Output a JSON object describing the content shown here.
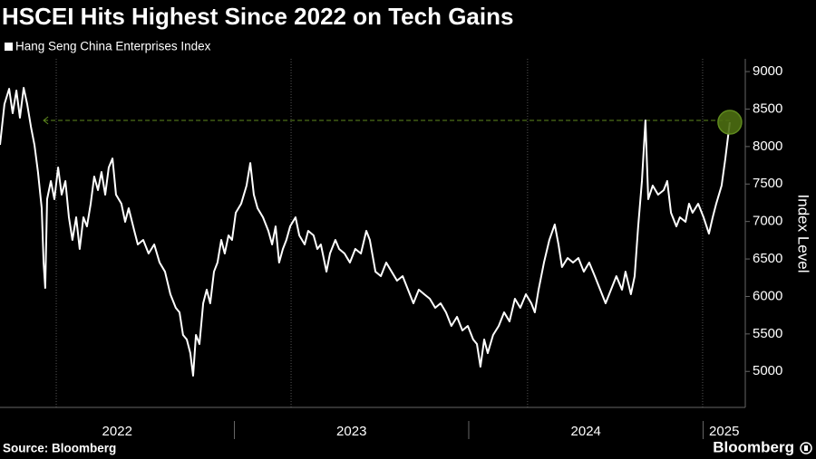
{
  "chart_data": {
    "type": "line",
    "title": "HSCEI Hits Highest Since 2022 on Tech Gains",
    "y_label": "Index Level",
    "source": "Source: Bloomberg",
    "logo": "Bloomberg",
    "ylim": [
      4520,
      9170
    ],
    "yticks": [
      5000,
      5500,
      6000,
      6500,
      7000,
      7500,
      8000,
      8500,
      9000
    ],
    "xlim": [
      2022,
      2025.18
    ],
    "xticks": [
      {
        "value": 2022.5,
        "label": "2022"
      },
      {
        "value": 2023.5,
        "label": "2023"
      },
      {
        "value": 2024.5,
        "label": "2024"
      },
      {
        "value": 2025.09,
        "label": "2025"
      }
    ],
    "xbounds": [
      2023,
      2024,
      2025
    ],
    "xgrid": [
      2022.24,
      2023.242,
      2024.251,
      2024.998
    ],
    "reference_line": {
      "y": 8349,
      "x": [
        2022.186,
        2025.114
      ],
      "color": "#5f8a1e"
    },
    "marker_color": "#4d6e12",
    "x": [
      2022.0,
      2022.019,
      2022.039,
      2022.054,
      2022.07,
      2022.085,
      2022.101,
      2022.116,
      2022.132,
      2022.147,
      2022.162,
      2022.178,
      2022.186,
      2022.193,
      2022.201,
      2022.217,
      2022.232,
      2022.248,
      2022.263,
      2022.279,
      2022.294,
      2022.309,
      2022.325,
      2022.34,
      2022.356,
      2022.371,
      2022.387,
      2022.402,
      2022.418,
      2022.433,
      2022.449,
      2022.464,
      2022.48,
      2022.495,
      2022.518,
      2022.534,
      2022.549,
      2022.573,
      2022.588,
      2022.611,
      2022.634,
      2022.658,
      2022.681,
      2022.704,
      2022.727,
      2022.75,
      2022.766,
      2022.781,
      2022.797,
      2022.812,
      2022.824,
      2022.836,
      2022.851,
      2022.867,
      2022.882,
      2022.897,
      2022.913,
      2022.928,
      2022.944,
      2022.959,
      2022.975,
      2022.99,
      2023.006,
      2023.029,
      2023.052,
      2023.068,
      2023.083,
      2023.099,
      2023.122,
      2023.145,
      2023.161,
      2023.176,
      2023.191,
      2023.207,
      2023.222,
      2023.238,
      2023.261,
      2023.277,
      2023.3,
      2023.315,
      2023.338,
      2023.354,
      2023.369,
      2023.393,
      2023.408,
      2023.431,
      2023.447,
      2023.47,
      2023.493,
      2023.516,
      2023.54,
      2023.563,
      2023.578,
      2023.602,
      2023.625,
      2023.648,
      2023.671,
      2023.694,
      2023.718,
      2023.741,
      2023.764,
      2023.787,
      2023.81,
      2023.834,
      2023.857,
      2023.88,
      2023.903,
      2023.926,
      2023.95,
      2023.973,
      2023.996,
      2024.019,
      2024.035,
      2024.05,
      2024.066,
      2024.081,
      2024.104,
      2024.128,
      2024.151,
      2024.174,
      2024.197,
      2024.22,
      2024.244,
      2024.267,
      2024.282,
      2024.298,
      2024.321,
      2024.344,
      2024.367,
      2024.383,
      2024.398,
      2024.422,
      2024.445,
      2024.468,
      2024.491,
      2024.514,
      2024.538,
      2024.561,
      2024.584,
      2024.607,
      2024.63,
      2024.654,
      2024.669,
      2024.692,
      2024.708,
      2024.723,
      2024.739,
      2024.754,
      2024.766,
      2024.785,
      2024.808,
      2024.832,
      2024.847,
      2024.863,
      2024.886,
      2024.901,
      2024.925,
      2024.94,
      2024.955,
      2024.979,
      2025.002,
      2025.025,
      2025.041,
      2025.056,
      2025.079,
      2025.095,
      2025.114
    ],
    "series": [
      {
        "name": "Hang Seng China Enterprises Index",
        "color": "#ffffff",
        "values": [
          8022,
          8566,
          8770,
          8445,
          8747,
          8385,
          8783,
          8566,
          8264,
          8022,
          7660,
          7177,
          6452,
          6114,
          7298,
          7540,
          7298,
          7720,
          7358,
          7540,
          7056,
          6754,
          7056,
          6634,
          7056,
          6935,
          7237,
          7600,
          7419,
          7660,
          7358,
          7720,
          7841,
          7358,
          7237,
          6996,
          7177,
          6875,
          6694,
          6754,
          6573,
          6694,
          6452,
          6331,
          6030,
          5849,
          5788,
          5486,
          5426,
          5244,
          4943,
          5486,
          5365,
          5909,
          6090,
          5909,
          6331,
          6452,
          6754,
          6573,
          6815,
          6754,
          7117,
          7237,
          7479,
          7780,
          7358,
          7177,
          7056,
          6875,
          6694,
          6935,
          6452,
          6634,
          6754,
          6935,
          7056,
          6815,
          6694,
          6875,
          6815,
          6634,
          6694,
          6331,
          6573,
          6754,
          6634,
          6573,
          6452,
          6634,
          6573,
          6875,
          6754,
          6331,
          6271,
          6452,
          6331,
          6211,
          6271,
          6090,
          5909,
          6090,
          6030,
          5969,
          5849,
          5909,
          5788,
          5607,
          5728,
          5547,
          5607,
          5426,
          5365,
          5063,
          5426,
          5244,
          5486,
          5607,
          5788,
          5667,
          5969,
          5849,
          6030,
          5909,
          5788,
          6090,
          6452,
          6754,
          6960,
          6694,
          6392,
          6513,
          6452,
          6513,
          6331,
          6452,
          6271,
          6090,
          5909,
          6090,
          6271,
          6090,
          6331,
          6030,
          6271,
          6935,
          7540,
          8349,
          7298,
          7479,
          7358,
          7419,
          7540,
          7117,
          6935,
          7056,
          6996,
          7237,
          7117,
          7237,
          7056,
          6839,
          7056,
          7237,
          7479,
          7841,
          8324
        ]
      }
    ]
  }
}
